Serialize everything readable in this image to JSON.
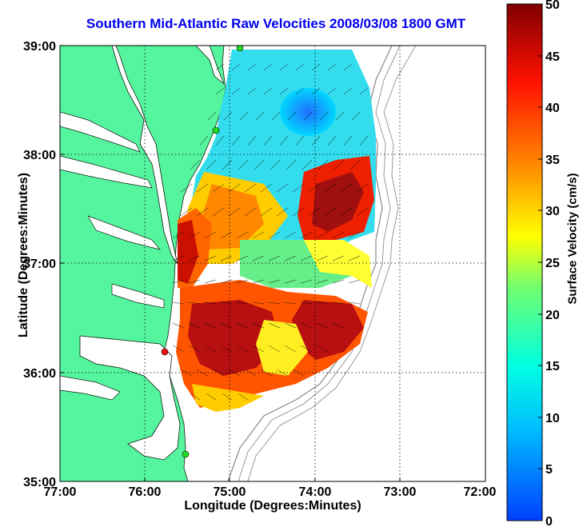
{
  "title": "Southern Mid-Atlantic Raw Velocities 2008/03/08 1800 GMT",
  "xlabel": "Longitude (Degrees:Minutes)",
  "ylabel": "Latitude (Degrees:Minutes)",
  "colorbar_label": "Surface Velocity (cm/s)",
  "x_ticks": [
    "77:00",
    "76:00",
    "75:00",
    "74:00",
    "73:00",
    "72:00"
  ],
  "y_ticks": [
    "39:00",
    "38:00",
    "37:00",
    "36:00",
    "35:00"
  ],
  "colorbar_ticks": [
    "50",
    "45",
    "40",
    "35",
    "30",
    "25",
    "20",
    "15",
    "10",
    "5",
    "0"
  ],
  "colors": {
    "land": "#55f59f",
    "title": "#0000ee",
    "site_green": "#22dd22",
    "site_red": "#ee1111"
  },
  "chart_data": {
    "type": "heatmap",
    "title": "Southern Mid-Atlantic Raw Velocities 2008/03/08 1800 GMT",
    "xlabel": "Longitude (Degrees:Minutes)",
    "ylabel": "Latitude (Degrees:Minutes)",
    "xlim": [
      -77,
      -72
    ],
    "ylim": [
      35,
      39
    ],
    "grid": true,
    "colorbar": {
      "label": "Surface Velocity (cm/s)",
      "range": [
        0,
        50
      ],
      "colormap": "jet"
    },
    "sites": [
      {
        "lon": -74.88,
        "lat": 39.0,
        "color": "green"
      },
      {
        "lon": -75.15,
        "lat": 38.22,
        "color": "green"
      },
      {
        "lon": -75.68,
        "lat": 36.18,
        "color": "red"
      },
      {
        "lon": -75.53,
        "lat": 35.25,
        "color": "green"
      }
    ]
  }
}
